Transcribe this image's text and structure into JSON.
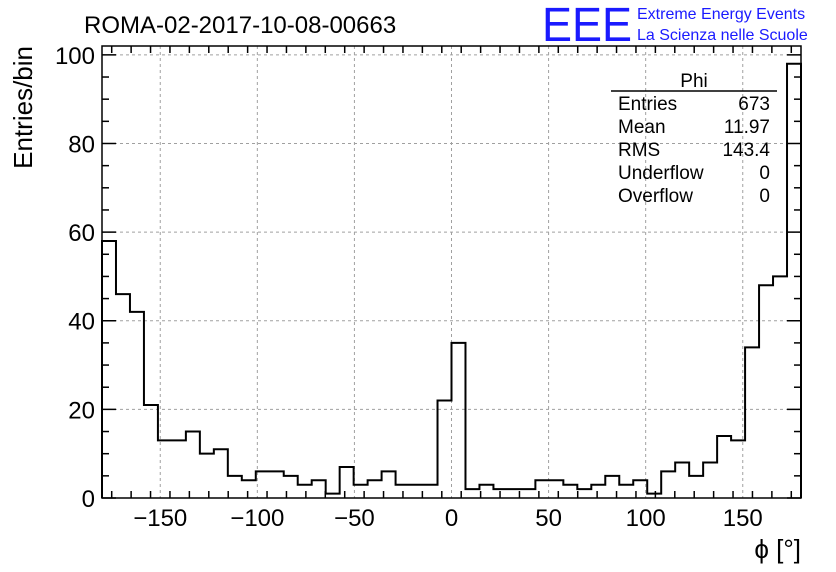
{
  "chart_data": {
    "type": "histogram",
    "title": "ROMA-02-2017-10-08-00663",
    "xlabel": "ϕ [°]",
    "ylabel": "Entries/bin",
    "xlim": [
      -180,
      180
    ],
    "ylim": [
      0,
      102
    ],
    "grid": true,
    "bin_width": 7.2,
    "bin_edges_start": -180,
    "values": [
      58,
      46,
      42,
      21,
      13,
      13,
      15,
      10,
      11,
      5,
      4,
      6,
      6,
      5,
      3,
      4,
      1,
      7,
      3,
      4,
      6,
      3,
      3,
      3,
      22,
      35,
      2,
      3,
      2,
      2,
      2,
      4,
      4,
      3,
      2,
      3,
      5,
      3,
      4,
      1,
      6,
      8,
      5,
      8,
      14,
      13,
      34,
      48,
      50,
      98
    ],
    "x_ticks": [
      -150,
      -100,
      -50,
      0,
      50,
      100,
      150
    ],
    "x_tick_labels": [
      "−150",
      "−100",
      "−50",
      "0",
      "50",
      "100",
      "150"
    ],
    "y_ticks": [
      0,
      20,
      40,
      60,
      80,
      100
    ],
    "y_tick_labels": [
      "0",
      "20",
      "40",
      "60",
      "80",
      "100"
    ],
    "stats_box": {
      "title": "Phi",
      "rows": [
        {
          "label": "Entries",
          "value": "673"
        },
        {
          "label": "Mean",
          "value": "11.97"
        },
        {
          "label": "RMS",
          "value": "143.4"
        },
        {
          "label": "Underflow",
          "value": "0"
        },
        {
          "label": "Overflow",
          "value": "0"
        }
      ]
    }
  },
  "logo": {
    "mark": "EEE",
    "line1": "Extreme Energy Events",
    "line2": "La Scienza nelle Scuole",
    "color": "#1a1aff"
  },
  "colors": {
    "line": "#000000",
    "grid": "#a0a0a0"
  }
}
